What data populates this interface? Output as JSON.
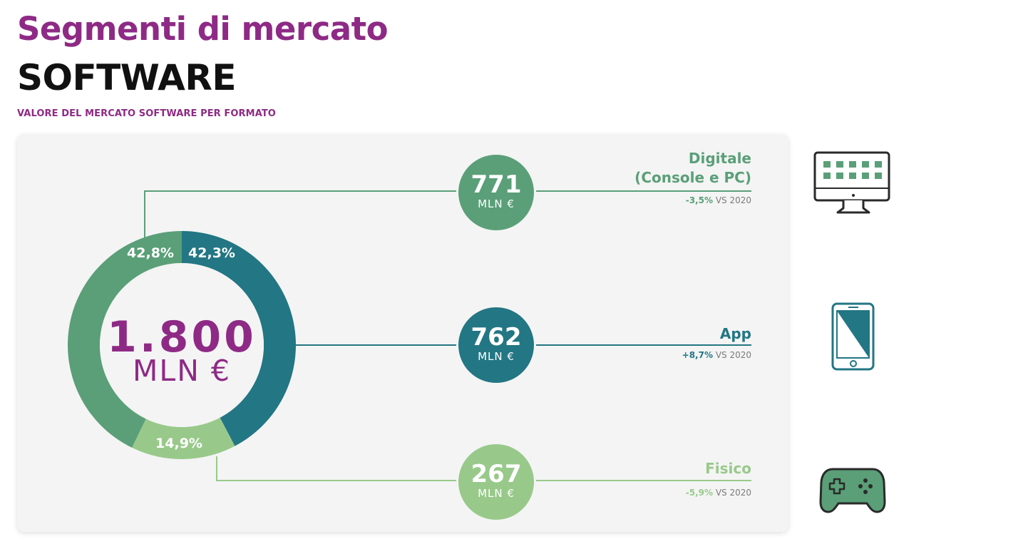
{
  "header": {
    "title": "Segmenti di mercato",
    "subtitle": "SOFTWARE",
    "caption": "VALORE DEL MERCATO SOFTWARE PER FORMATO"
  },
  "chart_data": {
    "type": "pie",
    "total": {
      "value": "1.800",
      "unit": "MLN €"
    },
    "series": [
      {
        "name": "App",
        "value": 762,
        "unit": "MLN €",
        "pct": 42.3,
        "pct_label": "42,3%",
        "change": "+8,7%",
        "change_suffix": "VS 2020",
        "color": "#237684"
      },
      {
        "name": "Fisico",
        "value": 267,
        "unit": "MLN €",
        "pct": 14.9,
        "pct_label": "14,9%",
        "change": "-5,9%",
        "change_suffix": "VS 2020",
        "color": "#98c98a"
      },
      {
        "name": "Digitale (Console e PC)",
        "name_line1": "Digitale",
        "name_line2": "(Console e PC)",
        "value": 771,
        "unit": "MLN €",
        "pct": 42.8,
        "pct_label": "42,8%",
        "change": "-3,5%",
        "change_suffix": "VS 2020",
        "color": "#5a9f78"
      }
    ]
  },
  "colors": {
    "title": "#8e2a85",
    "digitale": "#5a9f78",
    "app": "#237684",
    "fisico": "#98c98a"
  },
  "icons": {
    "digitale": "desktop-monitor-icon",
    "app": "smartphone-icon",
    "fisico": "gamepad-icon"
  }
}
